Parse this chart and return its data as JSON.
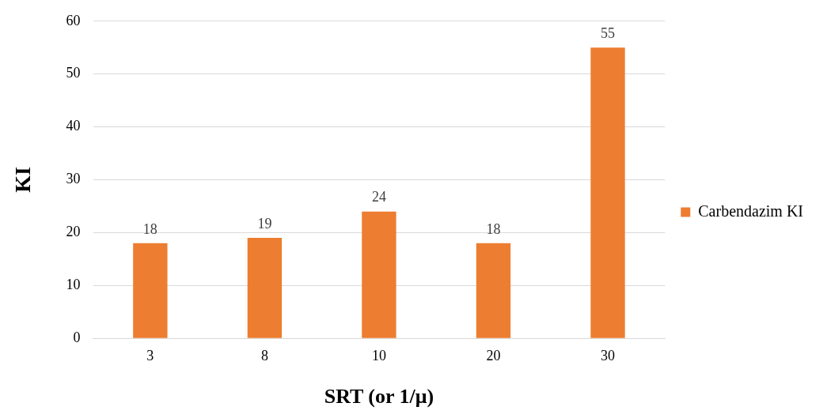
{
  "chart_data": {
    "type": "bar",
    "xlabel": "SRT (or 1/μ)",
    "ylabel": "KI",
    "categories": [
      "3",
      "8",
      "10",
      "20",
      "30"
    ],
    "series": [
      {
        "name": "Carbendazim KI",
        "color": "#ed7d31",
        "values": [
          18,
          19,
          24,
          18,
          55
        ]
      }
    ],
    "ylim": [
      0,
      60
    ],
    "yticks": [
      0,
      10,
      20,
      30,
      40,
      50,
      60
    ],
    "grid": "y",
    "legend": "right",
    "data_labels": true
  }
}
